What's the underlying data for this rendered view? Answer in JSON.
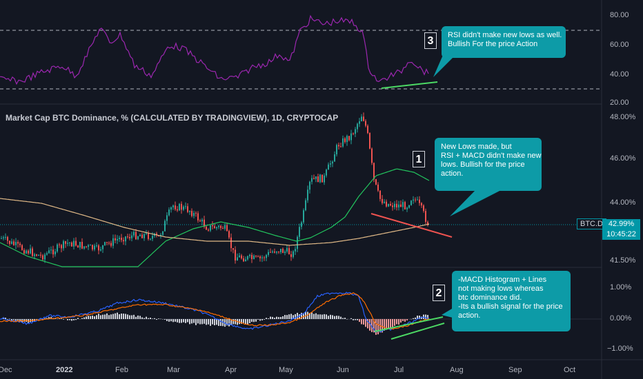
{
  "chart_data": [
    {
      "type": "line",
      "series": [
        {
          "name": "RSI"
        }
      ],
      "y_ticks": [
        "80.00",
        "60.00",
        "40.00",
        "20.00"
      ],
      "ylim": [
        20,
        85
      ],
      "bands": [
        70,
        30
      ],
      "description": "RSI oscillator panel (purple line) with dashed 70/30 bands"
    },
    {
      "type": "candlestick",
      "title": "Market Cap BTC Dominance, % (CALCULATED BY TRADINGVIEW), 1D, CRYPTOCAP",
      "y_ticks": [
        "48.00%",
        "46.00%",
        "44.00%",
        "41.50%"
      ],
      "ylim": [
        41.4,
        48.2
      ],
      "last_value": "42.99%",
      "symbol": "BTC.D",
      "countdown": "10:45:22",
      "moving_averages": [
        {
          "color": "#22c55e"
        },
        {
          "color": "#e0b987"
        }
      ]
    },
    {
      "type": "histogram",
      "y_ticks": [
        "1.00%",
        "0.00%",
        "−1.00%"
      ],
      "ylim": [
        -1.2,
        1.2
      ],
      "description": "MACD histogram with MACD (blue) and signal (orange) lines"
    }
  ],
  "x_axis": {
    "labels": [
      "Dec",
      "2022",
      "Feb",
      "Mar",
      "Apr",
      "May",
      "Jun",
      "Jul",
      "Aug",
      "Sep",
      "Oct"
    ],
    "bold_label": "2022"
  },
  "annotations": {
    "rsi": {
      "number": "3",
      "lines": [
        "RSI didn't make new lows as well.",
        "Bullish For the price Action"
      ]
    },
    "price": {
      "number": "1",
      "lines": [
        "New Lows made, but",
        "RSI + MACD didn't make new",
        "lows. Bullish for the price",
        "action."
      ]
    },
    "macd": {
      "number": "2",
      "lines": [
        "-MACD Histogram + Lines",
        "  not making lows whereas",
        "  btc dominance did.",
        "-Its a bullish signal for the price",
        "  action."
      ]
    }
  },
  "colors": {
    "background": "#131722",
    "rsi": "#9c27b0",
    "up": "#26a69a",
    "down": "#ef5350",
    "callout": "#0d9ba7",
    "trend_green": "#4cd964",
    "trend_red": "#ef5350",
    "macd": "#2962ff",
    "signal": "#ff6d00"
  }
}
